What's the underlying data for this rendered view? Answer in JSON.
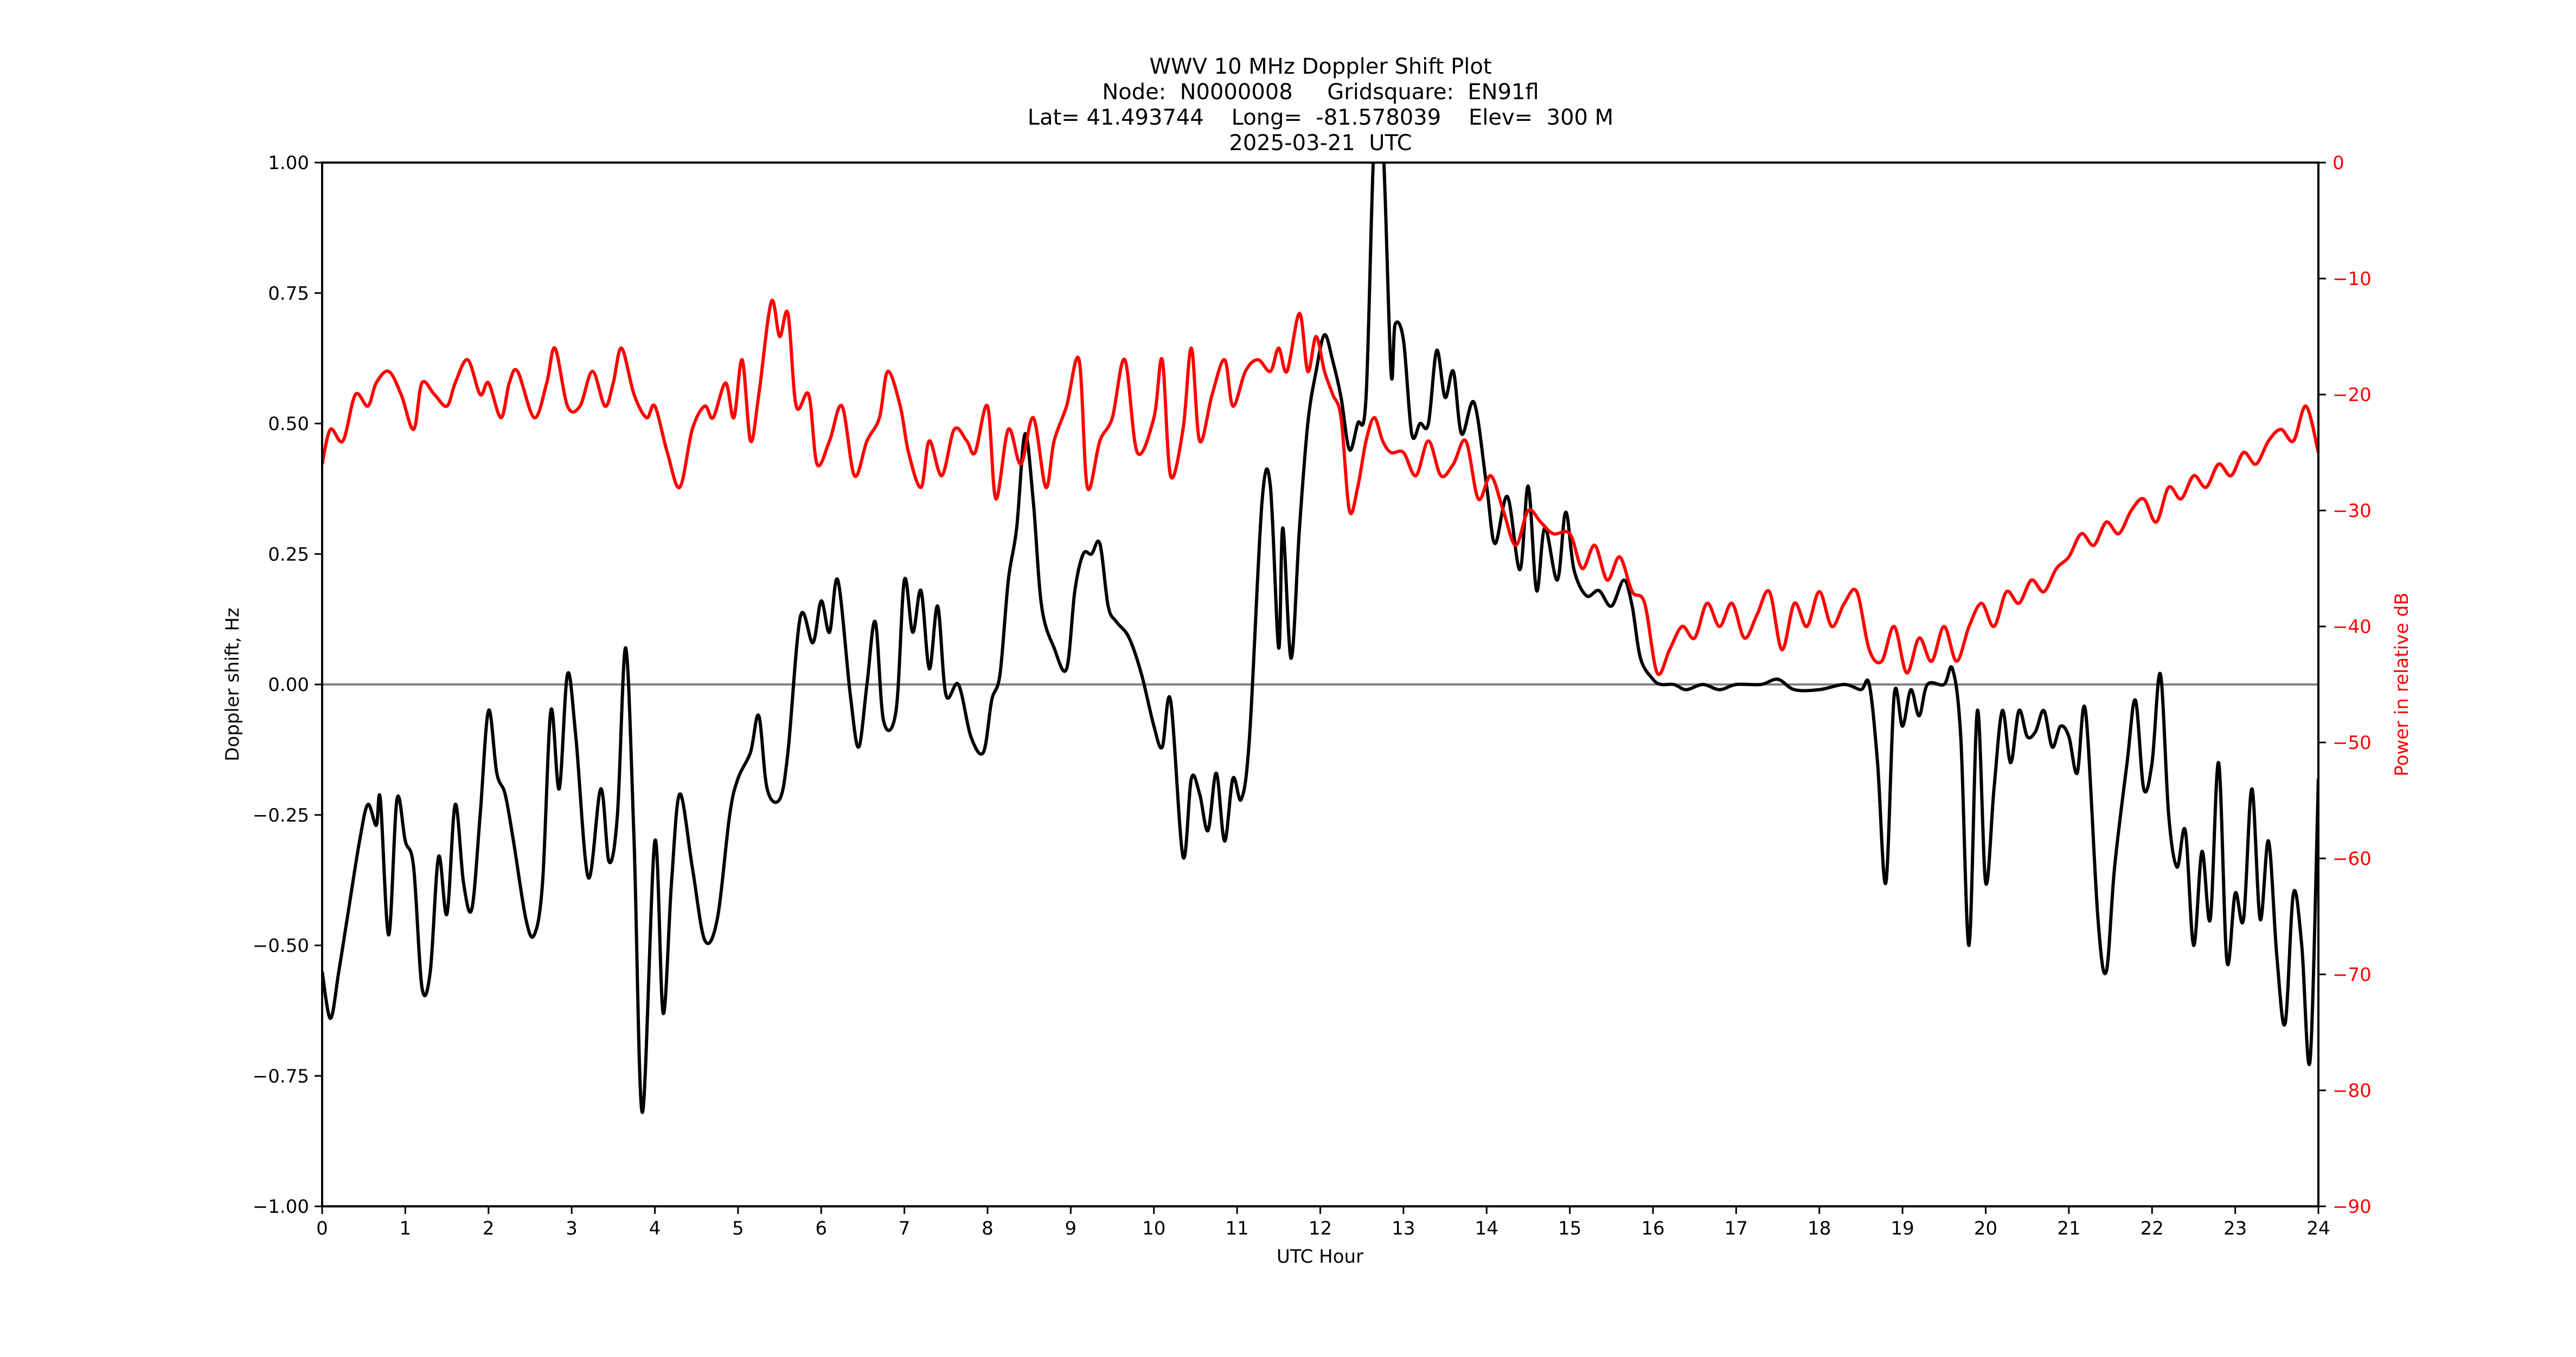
{
  "title": {
    "line1": "WWV 10 MHz Doppler Shift Plot",
    "line2": "Node:  N0000008     Gridsquare:  EN91fl",
    "line3": "Lat= 41.493744    Long=  -81.578039    Elev=  300 M",
    "line4": "2025-03-21  UTC"
  },
  "colors": {
    "doppler": "#000000",
    "power": "#ff0000",
    "zero_line": "#808080",
    "axis": "#000000"
  },
  "chart_data": {
    "type": "line",
    "title": "WWV 10 MHz Doppler Shift Plot",
    "subtitle": [
      "Node:  N0000008     Gridsquare:  EN91fl",
      "Lat= 41.493744    Long=  -81.578039    Elev=  300 M",
      "2025-03-21  UTC"
    ],
    "xlabel": "UTC Hour",
    "ylabel": "Doppler shift, Hz",
    "y2label": "Power in relative dB",
    "xlim": [
      0,
      24
    ],
    "ylim": [
      -1.0,
      1.0
    ],
    "y2lim": [
      -90,
      0
    ],
    "xticks": [
      "0",
      "1",
      "2",
      "3",
      "4",
      "5",
      "6",
      "7",
      "8",
      "9",
      "10",
      "11",
      "12",
      "13",
      "14",
      "15",
      "16",
      "17",
      "18",
      "19",
      "20",
      "21",
      "22",
      "23",
      "24"
    ],
    "yticks": [
      "1.00",
      "0.75",
      "0.50",
      "0.25",
      "0.00",
      "−0.25",
      "−0.50",
      "−0.75",
      "−1.00"
    ],
    "y2ticks": [
      "0",
      "−10",
      "−20",
      "−30",
      "−40",
      "−50",
      "−60",
      "−70",
      "−80",
      "−90"
    ],
    "grid": false,
    "legend": null,
    "reference_line": {
      "y": 0.0,
      "color": "#808080"
    },
    "series": [
      {
        "name": "Doppler shift, Hz",
        "axis": "left",
        "color": "#000000",
        "x": [
          0,
          0.1,
          0.2,
          0.3,
          0.45,
          0.55,
          0.65,
          0.7,
          0.8,
          0.9,
          1.0,
          1.1,
          1.2,
          1.3,
          1.4,
          1.5,
          1.6,
          1.7,
          1.8,
          1.9,
          2.0,
          2.1,
          2.2,
          2.3,
          2.45,
          2.55,
          2.65,
          2.75,
          2.85,
          2.95,
          3.05,
          3.2,
          3.35,
          3.45,
          3.55,
          3.65,
          3.75,
          3.85,
          4.0,
          4.1,
          4.2,
          4.3,
          4.45,
          4.6,
          4.75,
          4.9,
          5.0,
          5.15,
          5.25,
          5.35,
          5.5,
          5.6,
          5.75,
          5.9,
          6.0,
          6.1,
          6.2,
          6.35,
          6.45,
          6.55,
          6.65,
          6.75,
          6.9,
          7.0,
          7.1,
          7.2,
          7.3,
          7.4,
          7.5,
          7.65,
          7.8,
          7.95,
          8.05,
          8.15,
          8.25,
          8.35,
          8.45,
          8.55,
          8.65,
          8.8,
          8.95,
          9.05,
          9.15,
          9.25,
          9.35,
          9.45,
          9.55,
          9.7,
          9.85,
          10.0,
          10.1,
          10.2,
          10.35,
          10.45,
          10.55,
          10.65,
          10.75,
          10.85,
          10.95,
          11.05,
          11.15,
          11.3,
          11.4,
          11.5,
          11.55,
          11.65,
          11.75,
          11.85,
          11.95,
          12.05,
          12.15,
          12.25,
          12.35,
          12.45,
          12.55,
          12.65,
          12.75,
          12.85,
          12.9,
          13.0,
          13.1,
          13.2,
          13.3,
          13.4,
          13.5,
          13.6,
          13.7,
          13.85,
          14.0,
          14.1,
          14.25,
          14.4,
          14.5,
          14.6,
          14.7,
          14.85,
          14.95,
          15.05,
          15.2,
          15.35,
          15.5,
          15.65,
          15.75,
          15.85,
          16.0,
          16.1,
          16.25,
          16.4,
          16.6,
          16.8,
          17.0,
          17.3,
          17.5,
          17.7,
          18.0,
          18.3,
          18.5,
          18.6,
          18.7,
          18.8,
          18.9,
          19.0,
          19.1,
          19.2,
          19.3,
          19.5,
          19.6,
          19.7,
          19.8,
          19.9,
          20.0,
          20.1,
          20.2,
          20.3,
          20.4,
          20.5,
          20.6,
          20.7,
          20.8,
          20.9,
          21.0,
          21.1,
          21.2,
          21.35,
          21.45,
          21.55,
          21.7,
          21.8,
          21.9,
          22.0,
          22.1,
          22.2,
          22.3,
          22.4,
          22.5,
          22.6,
          22.7,
          22.8,
          22.9,
          23.0,
          23.1,
          23.2,
          23.3,
          23.4,
          23.5,
          23.6,
          23.7,
          23.8,
          23.9,
          24.0
        ],
        "y": [
          -0.55,
          -0.64,
          -0.55,
          -0.45,
          -0.3,
          -0.23,
          -0.27,
          -0.22,
          -0.48,
          -0.22,
          -0.3,
          -0.35,
          -0.58,
          -0.55,
          -0.33,
          -0.44,
          -0.23,
          -0.38,
          -0.43,
          -0.25,
          -0.05,
          -0.17,
          -0.21,
          -0.3,
          -0.45,
          -0.48,
          -0.38,
          -0.05,
          -0.2,
          0.02,
          -0.1,
          -0.37,
          -0.2,
          -0.34,
          -0.25,
          0.07,
          -0.3,
          -0.82,
          -0.3,
          -0.63,
          -0.38,
          -0.21,
          -0.35,
          -0.49,
          -0.45,
          -0.25,
          -0.18,
          -0.13,
          -0.06,
          -0.2,
          -0.22,
          -0.13,
          0.13,
          0.08,
          0.16,
          0.1,
          0.2,
          -0.02,
          -0.12,
          0.0,
          0.12,
          -0.07,
          -0.05,
          0.2,
          0.1,
          0.18,
          0.03,
          0.15,
          -0.02,
          0.0,
          -0.1,
          -0.13,
          -0.03,
          0.02,
          0.2,
          0.3,
          0.48,
          0.35,
          0.15,
          0.07,
          0.03,
          0.18,
          0.25,
          0.25,
          0.27,
          0.15,
          0.12,
          0.09,
          0.02,
          -0.08,
          -0.12,
          -0.03,
          -0.33,
          -0.18,
          -0.21,
          -0.28,
          -0.17,
          -0.3,
          -0.18,
          -0.22,
          -0.1,
          0.35,
          0.38,
          0.07,
          0.3,
          0.05,
          0.3,
          0.5,
          0.6,
          0.67,
          0.62,
          0.55,
          0.45,
          0.5,
          0.55,
          1.05,
          1.05,
          0.6,
          0.69,
          0.66,
          0.48,
          0.5,
          0.5,
          0.64,
          0.55,
          0.6,
          0.48,
          0.54,
          0.38,
          0.27,
          0.36,
          0.22,
          0.38,
          0.18,
          0.3,
          0.2,
          0.33,
          0.22,
          0.17,
          0.18,
          0.15,
          0.2,
          0.15,
          0.05,
          0.01,
          0.0,
          0.0,
          -0.01,
          0.0,
          -0.01,
          0.0,
          0.0,
          0.01,
          -0.01,
          -0.01,
          0.0,
          -0.01,
          0.0,
          -0.15,
          -0.38,
          -0.02,
          -0.08,
          -0.01,
          -0.06,
          0.0,
          0.0,
          0.03,
          -0.1,
          -0.5,
          -0.05,
          -0.38,
          -0.2,
          -0.05,
          -0.15,
          -0.05,
          -0.1,
          -0.09,
          -0.05,
          -0.12,
          -0.08,
          -0.1,
          -0.17,
          -0.05,
          -0.45,
          -0.55,
          -0.35,
          -0.15,
          -0.03,
          -0.2,
          -0.15,
          0.02,
          -0.25,
          -0.35,
          -0.28,
          -0.5,
          -0.32,
          -0.45,
          -0.15,
          -0.53,
          -0.4,
          -0.45,
          -0.2,
          -0.45,
          -0.3,
          -0.52,
          -0.65,
          -0.4,
          -0.5,
          -0.72,
          -0.18
        ]
      },
      {
        "name": "Power in relative dB",
        "axis": "right",
        "color": "#ff0000",
        "x": [
          0,
          0.1,
          0.25,
          0.4,
          0.55,
          0.65,
          0.8,
          0.95,
          1.1,
          1.2,
          1.35,
          1.5,
          1.6,
          1.75,
          1.9,
          2.0,
          2.15,
          2.25,
          2.35,
          2.55,
          2.7,
          2.8,
          2.95,
          3.1,
          3.25,
          3.4,
          3.5,
          3.6,
          3.75,
          3.9,
          4.0,
          4.15,
          4.3,
          4.45,
          4.6,
          4.7,
          4.85,
          4.95,
          5.05,
          5.15,
          5.25,
          5.4,
          5.5,
          5.6,
          5.7,
          5.85,
          5.95,
          6.1,
          6.25,
          6.4,
          6.55,
          6.7,
          6.8,
          6.95,
          7.05,
          7.2,
          7.3,
          7.45,
          7.6,
          7.75,
          7.85,
          8.0,
          8.1,
          8.25,
          8.4,
          8.55,
          8.7,
          8.8,
          8.95,
          9.1,
          9.2,
          9.35,
          9.5,
          9.65,
          9.8,
          10.0,
          10.1,
          10.2,
          10.35,
          10.45,
          10.55,
          10.7,
          10.85,
          10.95,
          11.1,
          11.25,
          11.4,
          11.5,
          11.6,
          11.75,
          11.85,
          11.95,
          12.05,
          12.15,
          12.25,
          12.35,
          12.45,
          12.55,
          12.65,
          12.75,
          12.85,
          13.0,
          13.15,
          13.3,
          13.45,
          13.6,
          13.75,
          13.9,
          14.05,
          14.2,
          14.35,
          14.5,
          14.65,
          14.8,
          15.0,
          15.15,
          15.3,
          15.45,
          15.6,
          15.75,
          15.9,
          16.05,
          16.2,
          16.35,
          16.5,
          16.65,
          16.8,
          16.95,
          17.1,
          17.25,
          17.4,
          17.55,
          17.7,
          17.85,
          18.0,
          18.15,
          18.3,
          18.45,
          18.6,
          18.75,
          18.9,
          19.05,
          19.2,
          19.35,
          19.5,
          19.65,
          19.8,
          19.95,
          20.1,
          20.25,
          20.4,
          20.55,
          20.7,
          20.85,
          21.0,
          21.15,
          21.3,
          21.45,
          21.6,
          21.75,
          21.9,
          22.05,
          22.2,
          22.35,
          22.5,
          22.65,
          22.8,
          22.95,
          23.1,
          23.25,
          23.4,
          23.55,
          23.7,
          23.85,
          24.0
        ],
        "y": [
          -26,
          -23,
          -24,
          -20,
          -21,
          -19,
          -18,
          -20,
          -23,
          -19,
          -20,
          -21,
          -19,
          -17,
          -20,
          -19,
          -22,
          -19,
          -18,
          -22,
          -19,
          -16,
          -21,
          -21,
          -18,
          -21,
          -19,
          -16,
          -20,
          -22,
          -21,
          -25,
          -28,
          -23,
          -21,
          -22,
          -19,
          -22,
          -17,
          -24,
          -20,
          -12,
          -15,
          -13,
          -21,
          -20,
          -26,
          -24,
          -21,
          -27,
          -24,
          -22,
          -18,
          -21,
          -25,
          -28,
          -24,
          -27,
          -23,
          -24,
          -25,
          -21,
          -29,
          -23,
          -26,
          -22,
          -28,
          -24,
          -21,
          -17,
          -28,
          -24,
          -22,
          -17,
          -25,
          -22,
          -17,
          -27,
          -23,
          -16,
          -24,
          -20,
          -17,
          -21,
          -18,
          -17,
          -18,
          -16,
          -18,
          -13,
          -18,
          -15,
          -18,
          -20,
          -22,
          -30,
          -28,
          -24,
          -22,
          -24,
          -25,
          -25,
          -27,
          -24,
          -27,
          -26,
          -24,
          -29,
          -27,
          -30,
          -33,
          -30,
          -31,
          -32,
          -32,
          -35,
          -33,
          -36,
          -34,
          -37,
          -38,
          -44,
          -42,
          -40,
          -41,
          -38,
          -40,
          -38,
          -41,
          -39,
          -37,
          -42,
          -38,
          -40,
          -37,
          -40,
          -38,
          -37,
          -42,
          -43,
          -40,
          -44,
          -41,
          -43,
          -40,
          -43,
          -40,
          -38,
          -40,
          -37,
          -38,
          -36,
          -37,
          -35,
          -34,
          -32,
          -33,
          -31,
          -32,
          -30,
          -29,
          -31,
          -28,
          -29,
          -27,
          -28,
          -26,
          -27,
          -25,
          -26,
          -24,
          -23,
          -24,
          -21,
          -25
        ]
      }
    ]
  }
}
